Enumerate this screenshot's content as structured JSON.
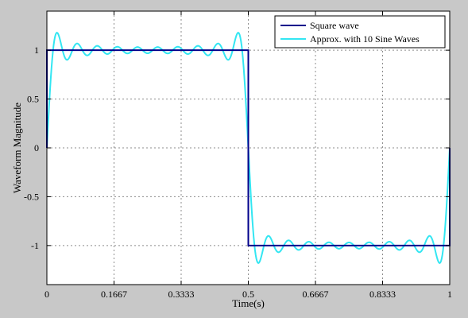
{
  "colors": {
    "figure_background": "#c8c8c8",
    "axes_background": "#ffffff",
    "grid": "#8c8c8c",
    "square_wave": "#00008b",
    "approximation": "#33e6f2"
  },
  "chart_data": {
    "type": "line",
    "xlabel": "Time(s)",
    "ylabel": "Waveform Magnitude",
    "xlim": [
      0,
      1
    ],
    "ylim": [
      -1.4,
      1.4
    ],
    "grid": true,
    "grid_style": "dotted",
    "legend_position": "top-right",
    "xticks": [
      0,
      0.1667,
      0.3333,
      0.5,
      0.6667,
      0.8333,
      1
    ],
    "xtick_labels": [
      "0",
      "0.1667",
      "0.3333",
      "0.5",
      "0.6667",
      "0.8333",
      "1"
    ],
    "yticks": [
      -1,
      -0.5,
      0,
      0.5,
      1
    ],
    "ytick_labels": [
      "-1",
      "-0.5",
      "0",
      "0.5",
      "1"
    ],
    "series": [
      {
        "name": "Square wave",
        "color": "#00008b",
        "x": [
          0,
          0,
          0.5,
          0.5,
          1,
          1
        ],
        "y": [
          0,
          1,
          1,
          -1,
          -1,
          0
        ]
      },
      {
        "name": "Approx. with 10 Sine Waves",
        "color": "#33e6f2",
        "function": "fourier_square_wave",
        "harmonics": 10,
        "frequency_hz": 1,
        "x_range": [
          0,
          1
        ],
        "samples": 600
      }
    ]
  }
}
